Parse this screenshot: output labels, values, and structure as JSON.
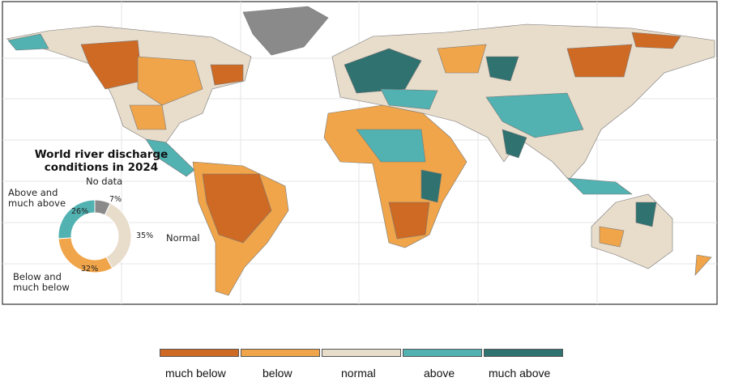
{
  "title": "World river discharge conditions in 2024",
  "colors": {
    "much_below": "#cf6a24",
    "below": "#f0a54a",
    "normal": "#e8dccb",
    "above": "#52b1b1",
    "much_above": "#2f7270",
    "no_data": "#8a8a8a"
  },
  "chart_data": {
    "type": "pie",
    "title": "World river discharge conditions in 2024",
    "categories": [
      "No data",
      "Normal",
      "Below and much below",
      "Above and much above"
    ],
    "values": [
      7,
      35,
      32,
      26
    ],
    "labels": [
      "7%",
      "35%",
      "32%",
      "26%"
    ]
  },
  "donut_labels": {
    "no_data": "No data",
    "normal": "Normal",
    "below": "Below and much below",
    "above": "Above and much above"
  },
  "legend": [
    {
      "label": "much below",
      "color": "#cf6a24"
    },
    {
      "label": "below",
      "color": "#f0a54a"
    },
    {
      "label": "normal",
      "color": "#e8dccb"
    },
    {
      "label": "above",
      "color": "#52b1b1"
    },
    {
      "label": "much above",
      "color": "#2f7270"
    }
  ]
}
